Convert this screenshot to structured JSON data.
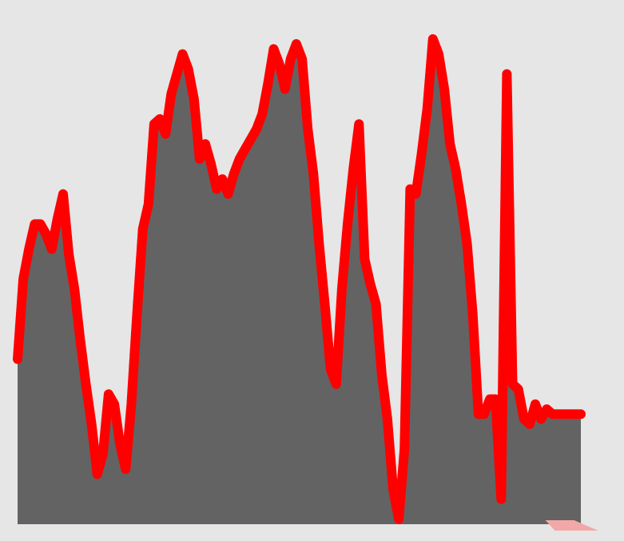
{
  "chart_data": {
    "type": "area",
    "title": "",
    "xlabel": "",
    "ylabel": "",
    "grid": false,
    "legend": "none",
    "xlim": [
      0,
      99
    ],
    "ylim": [
      0,
      100
    ],
    "colors": {
      "background": "#e6e6e6",
      "fill": "#636363",
      "line": "#ff0000",
      "marker": "#f2a8a8"
    },
    "series": [
      {
        "x": [
          0,
          1,
          2,
          3,
          4,
          5,
          6,
          7,
          8,
          9,
          10,
          11,
          12,
          13,
          14,
          15,
          16,
          17,
          18,
          19,
          20,
          21,
          22,
          23,
          24,
          25,
          26,
          27,
          28,
          29,
          30,
          31,
          32,
          33,
          34,
          35,
          36,
          37,
          38,
          39,
          40,
          41,
          42,
          43,
          44,
          45,
          46,
          47,
          48,
          49,
          50,
          51,
          52,
          53,
          54,
          55,
          56,
          57,
          58,
          59,
          60,
          61,
          62,
          63,
          64,
          65,
          66,
          67,
          68,
          69,
          70,
          71,
          72,
          73,
          74,
          75,
          76,
          77,
          78,
          79,
          80,
          81,
          82,
          83,
          84,
          85,
          86,
          87,
          88,
          89,
          90,
          91,
          92,
          93,
          94,
          95,
          96,
          97,
          98,
          99
        ],
        "y": [
          33,
          49,
          55,
          60,
          60,
          58,
          55,
          61,
          66,
          54,
          47,
          37,
          28,
          20,
          10,
          14,
          26,
          24,
          16,
          11,
          24,
          42,
          59,
          64,
          80,
          81,
          78,
          86,
          90,
          94,
          91,
          85,
          73,
          76,
          72,
          67,
          69,
          66,
          70,
          73,
          75,
          77,
          79,
          82,
          88,
          95,
          92,
          87,
          93,
          96,
          93,
          79,
          70,
          56,
          44,
          31,
          28,
          47,
          60,
          71,
          80,
          53,
          48,
          44,
          30,
          21,
          7,
          1,
          15,
          67,
          66,
          74,
          83,
          97,
          94,
          87,
          76,
          71,
          64,
          56,
          42,
          22,
          22,
          25,
          25,
          5,
          90,
          28,
          27,
          21,
          20,
          24,
          21,
          23,
          22,
          22,
          22,
          22,
          22,
          22
        ]
      }
    ],
    "markers": [
      {
        "x": 96,
        "y": 0
      }
    ]
  }
}
